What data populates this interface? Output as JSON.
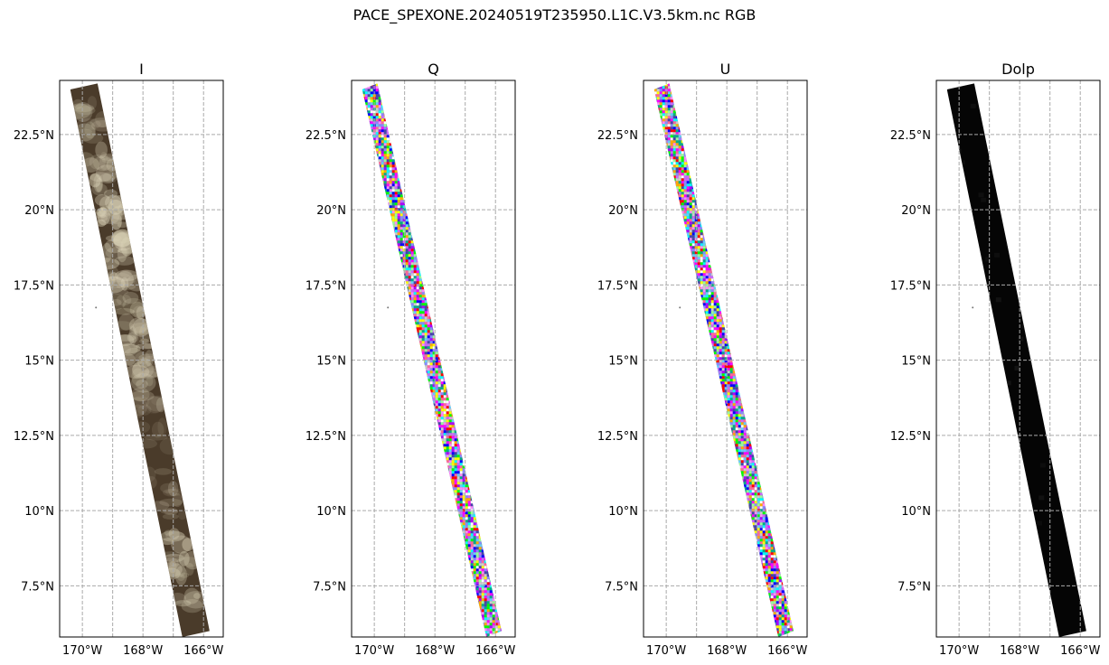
{
  "suptitle": "PACE_SPEXONE.20240519T235950.L1C.V3.5km.nc RGB",
  "chart_data": [
    {
      "type": "heatmap",
      "title": "I",
      "projection": "geographic lon/lat",
      "xlim": [
        -170.75,
        -165.35
      ],
      "ylim": [
        5.8,
        24.3
      ],
      "xticks": [
        -170,
        -168,
        -166
      ],
      "xticklabels": [
        "170°W",
        "168°W",
        "166°W"
      ],
      "yticks": [
        7.5,
        10,
        12.5,
        15,
        17.5,
        20,
        22.5
      ],
      "yticklabels": [
        "7.5°N",
        "10°N",
        "12.5°N",
        "15°N",
        "17.5°N",
        "20°N",
        "22.5°N"
      ],
      "grid": true,
      "swath": [
        [
          -170.4,
          24.0
        ],
        [
          -169.5,
          24.2
        ],
        [
          -165.8,
          6.0
        ],
        [
          -166.7,
          5.8
        ]
      ],
      "island": [
        -169.55,
        16.75
      ],
      "base_color": "#4a3b2a",
      "highlight_color": "#d9d1b6",
      "texture": "clouds"
    },
    {
      "type": "heatmap",
      "title": "Q",
      "projection": "geographic lon/lat",
      "xlim": [
        -170.75,
        -165.35
      ],
      "ylim": [
        5.8,
        24.3
      ],
      "xticks": [
        -170,
        -168,
        -166
      ],
      "xticklabels": [
        "170°W",
        "168°W",
        "166°W"
      ],
      "yticks": [
        7.5,
        10,
        12.5,
        15,
        17.5,
        20,
        22.5
      ],
      "yticklabels": [
        "7.5°N",
        "10°N",
        "12.5°N",
        "15°N",
        "17.5°N",
        "20°N",
        "22.5°N"
      ],
      "grid": true,
      "swath": [
        [
          -170.4,
          24.0
        ],
        [
          -169.9,
          24.2
        ],
        [
          -165.8,
          6.0
        ],
        [
          -166.3,
          5.8
        ]
      ],
      "island": [
        -169.55,
        16.75
      ],
      "texture": "noise"
    },
    {
      "type": "heatmap",
      "title": "U",
      "projection": "geographic lon/lat",
      "xlim": [
        -170.75,
        -165.35
      ],
      "ylim": [
        5.8,
        24.3
      ],
      "xticks": [
        -170,
        -168,
        -166
      ],
      "xticklabels": [
        "170°W",
        "168°W",
        "166°W"
      ],
      "yticks": [
        7.5,
        10,
        12.5,
        15,
        17.5,
        20,
        22.5
      ],
      "yticklabels": [
        "7.5°N",
        "10°N",
        "12.5°N",
        "15°N",
        "17.5°N",
        "20°N",
        "22.5°N"
      ],
      "grid": true,
      "swath": [
        [
          -170.4,
          24.0
        ],
        [
          -169.9,
          24.2
        ],
        [
          -165.8,
          6.0
        ],
        [
          -166.3,
          5.8
        ]
      ],
      "island": [
        -169.55,
        16.75
      ],
      "texture": "noise"
    },
    {
      "type": "heatmap",
      "title": "Dolp",
      "projection": "geographic lon/lat",
      "xlim": [
        -170.75,
        -165.35
      ],
      "ylim": [
        5.8,
        24.3
      ],
      "xticks": [
        -170,
        -168,
        -166
      ],
      "xticklabels": [
        "170°W",
        "168°W",
        "166°W"
      ],
      "yticks": [
        7.5,
        10,
        12.5,
        15,
        17.5,
        20,
        22.5
      ],
      "yticklabels": [
        "7.5°N",
        "10°N",
        "12.5°N",
        "15°N",
        "17.5°N",
        "20°N",
        "22.5°N"
      ],
      "grid": true,
      "swath": [
        [
          -170.4,
          24.0
        ],
        [
          -169.5,
          24.2
        ],
        [
          -165.8,
          6.0
        ],
        [
          -166.7,
          5.8
        ]
      ],
      "island": [
        -169.55,
        16.75
      ],
      "base_color": "#050505",
      "texture": "dark"
    }
  ]
}
